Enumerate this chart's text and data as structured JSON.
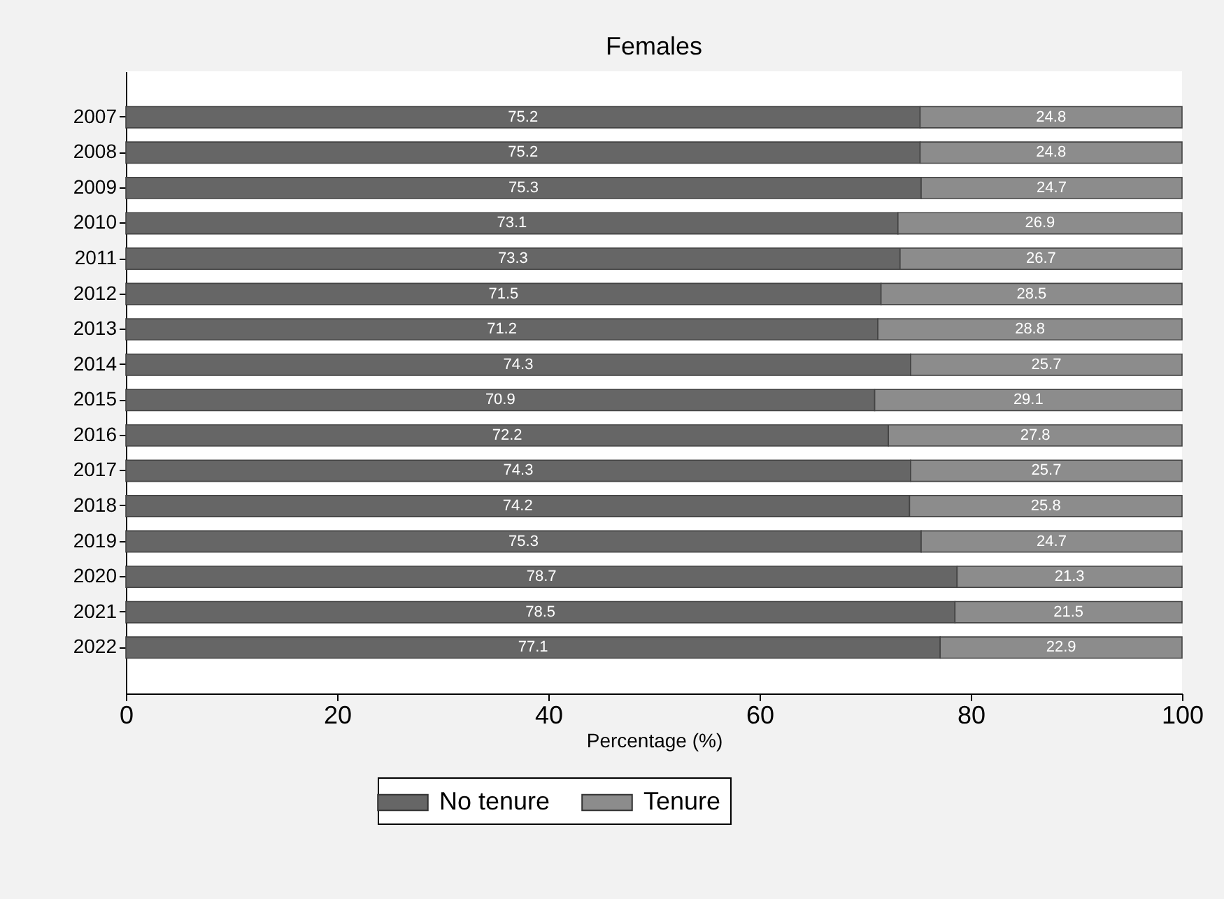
{
  "chart_data": {
    "type": "bar",
    "orientation": "horizontal",
    "stacked": true,
    "title": "Females",
    "xlabel": "Percentage (%)",
    "categories": [
      "2007",
      "2008",
      "2009",
      "2010",
      "2011",
      "2012",
      "2013",
      "2014",
      "2015",
      "2016",
      "2017",
      "2018",
      "2019",
      "2020",
      "2021",
      "2022"
    ],
    "series": [
      {
        "name": "No tenure",
        "color": "#666666",
        "values": [
          75.2,
          75.2,
          75.3,
          73.1,
          73.3,
          71.5,
          71.2,
          74.3,
          70.9,
          72.2,
          74.3,
          74.2,
          75.3,
          78.7,
          78.5,
          77.1
        ]
      },
      {
        "name": "Tenure",
        "color": "#8c8c8c",
        "values": [
          24.8,
          24.8,
          24.7,
          26.9,
          26.7,
          28.5,
          28.8,
          25.7,
          29.1,
          27.8,
          25.7,
          25.8,
          24.7,
          21.3,
          21.5,
          22.9
        ]
      }
    ],
    "xlim": [
      0,
      100
    ],
    "xticks": [
      0,
      20,
      40,
      60,
      80,
      100
    ],
    "data_labels": true,
    "grid": false,
    "legend": "bottom"
  }
}
